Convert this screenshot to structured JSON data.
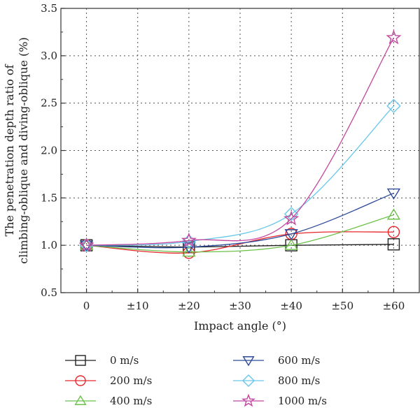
{
  "chart_data": {
    "type": "line",
    "title": "",
    "xlabel": "Impact angle (°)",
    "ylabel_lines": [
      "The penetration depth ratio of",
      "climbing-oblique and diving-oblique (%)"
    ],
    "x_ticks": [
      "0",
      "±10",
      "±20",
      "±30",
      "±40",
      "±50",
      "±60"
    ],
    "x_values": [
      0,
      10,
      20,
      30,
      40,
      50,
      60
    ],
    "xlim": [
      -5,
      65
    ],
    "ylim": [
      0.5,
      3.5
    ],
    "y_ticks": [
      "0.5",
      "1.0",
      "1.5",
      "2.0",
      "2.5",
      "3.0",
      "3.5"
    ],
    "y_tick_values": [
      0.5,
      1.0,
      1.5,
      2.0,
      2.5,
      3.0,
      3.5
    ],
    "grid": true,
    "legend_position": "bottom",
    "x": [
      0,
      20,
      40,
      60
    ],
    "series": [
      {
        "name": "0 m/s",
        "color": "#222222",
        "marker": "square",
        "values": [
          1.0,
          0.98,
          1.0,
          1.01
        ]
      },
      {
        "name": "200 m/s",
        "color": "#e8262b",
        "marker": "circle",
        "values": [
          1.0,
          0.92,
          1.12,
          1.14
        ]
      },
      {
        "name": "400 m/s",
        "color": "#6cc24a",
        "marker": "triangle-up",
        "values": [
          1.0,
          0.93,
          1.0,
          1.32
        ]
      },
      {
        "name": "600 m/s",
        "color": "#2c4a9a",
        "marker": "triangle-down",
        "values": [
          1.0,
          0.98,
          1.12,
          1.55
        ]
      },
      {
        "name": "800 m/s",
        "color": "#68c7ea",
        "marker": "diamond",
        "values": [
          1.0,
          1.04,
          1.33,
          2.47
        ]
      },
      {
        "name": "1000 m/s",
        "color": "#c2479f",
        "marker": "star",
        "values": [
          1.0,
          1.05,
          1.28,
          3.19
        ]
      }
    ]
  }
}
